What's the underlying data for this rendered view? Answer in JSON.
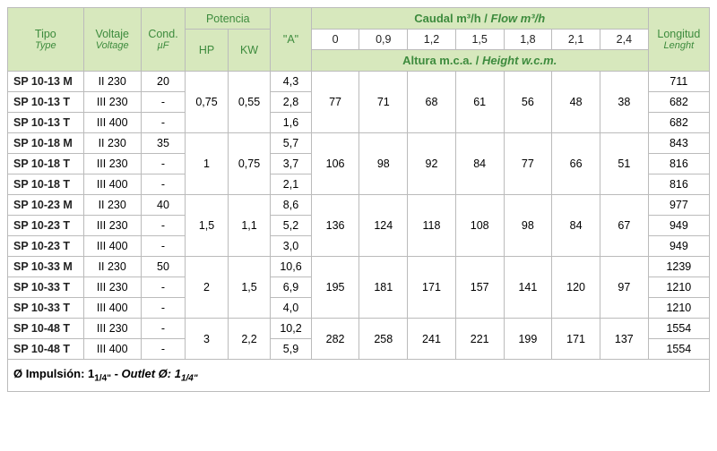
{
  "headers": {
    "type": "Tipo",
    "type_en": "Type",
    "voltage": "Voltaje",
    "voltage_en": "Voltage",
    "cond": "Cond.",
    "cond_unit": "µF",
    "power": "Potencia",
    "hp": "HP",
    "kw": "KW",
    "amp": "\"A\"",
    "flow_top": "Caudal m³/h",
    "flow_top_en": "Flow m³/h",
    "flow_vals": [
      "0",
      "0,9",
      "1,2",
      "1,5",
      "1,8",
      "2,1",
      "2,4"
    ],
    "height": "Altura  m.c.a.",
    "height_en": "Height w.c.m.",
    "length": "Longitud",
    "length_en": "Lenght"
  },
  "groups": [
    {
      "hp": "0,75",
      "kw": "0,55",
      "heights": [
        "77",
        "71",
        "68",
        "61",
        "56",
        "48",
        "38"
      ],
      "rows": [
        {
          "type": "SP 10-13 M",
          "volt": "II 230",
          "cond": "20",
          "a": "4,3",
          "len": "711"
        },
        {
          "type": "SP 10-13 T",
          "volt": "III 230",
          "cond": "-",
          "a": "2,8",
          "len": "682"
        },
        {
          "type": "SP 10-13 T",
          "volt": "III 400",
          "cond": "-",
          "a": "1,6",
          "len": "682"
        }
      ]
    },
    {
      "hp": "1",
      "kw": "0,75",
      "heights": [
        "106",
        "98",
        "92",
        "84",
        "77",
        "66",
        "51"
      ],
      "rows": [
        {
          "type": "SP 10-18 M",
          "volt": "II 230",
          "cond": "35",
          "a": "5,7",
          "len": "843"
        },
        {
          "type": "SP 10-18 T",
          "volt": "III 230",
          "cond": "-",
          "a": "3,7",
          "len": "816"
        },
        {
          "type": "SP 10-18 T",
          "volt": "III 400",
          "cond": "-",
          "a": "2,1",
          "len": "816"
        }
      ]
    },
    {
      "hp": "1,5",
      "kw": "1,1",
      "heights": [
        "136",
        "124",
        "118",
        "108",
        "98",
        "84",
        "67"
      ],
      "rows": [
        {
          "type": "SP 10-23 M",
          "volt": "II 230",
          "cond": "40",
          "a": "8,6",
          "len": "977"
        },
        {
          "type": "SP 10-23 T",
          "volt": "III 230",
          "cond": "-",
          "a": "5,2",
          "len": "949"
        },
        {
          "type": "SP 10-23 T",
          "volt": "III 400",
          "cond": "-",
          "a": "3,0",
          "len": "949"
        }
      ]
    },
    {
      "hp": "2",
      "kw": "1,5",
      "heights": [
        "195",
        "181",
        "171",
        "157",
        "141",
        "120",
        "97"
      ],
      "rows": [
        {
          "type": "SP 10-33 M",
          "volt": "II 230",
          "cond": "50",
          "a": "10,6",
          "len": "1239"
        },
        {
          "type": "SP 10-33 T",
          "volt": "III 230",
          "cond": "-",
          "a": "6,9",
          "len": "1210"
        },
        {
          "type": "SP 10-33 T",
          "volt": "III 400",
          "cond": "-",
          "a": "4,0",
          "len": "1210"
        }
      ]
    },
    {
      "hp": "3",
      "kw": "2,2",
      "heights": [
        "282",
        "258",
        "241",
        "221",
        "199",
        "171",
        "137"
      ],
      "rows": [
        {
          "type": "SP 10-48 T",
          "volt": "III 230",
          "cond": "-",
          "a": "10,2",
          "len": "1554"
        },
        {
          "type": "SP 10-48 T",
          "volt": "III 400",
          "cond": "-",
          "a": "5,9",
          "len": "1554"
        }
      ]
    }
  ],
  "footer": {
    "es": "Ø Impulsión: 1",
    "es_frac": "1/4\"",
    "sep": " - ",
    "en": "Outlet Ø: 1",
    "en_frac": "1/4\""
  }
}
